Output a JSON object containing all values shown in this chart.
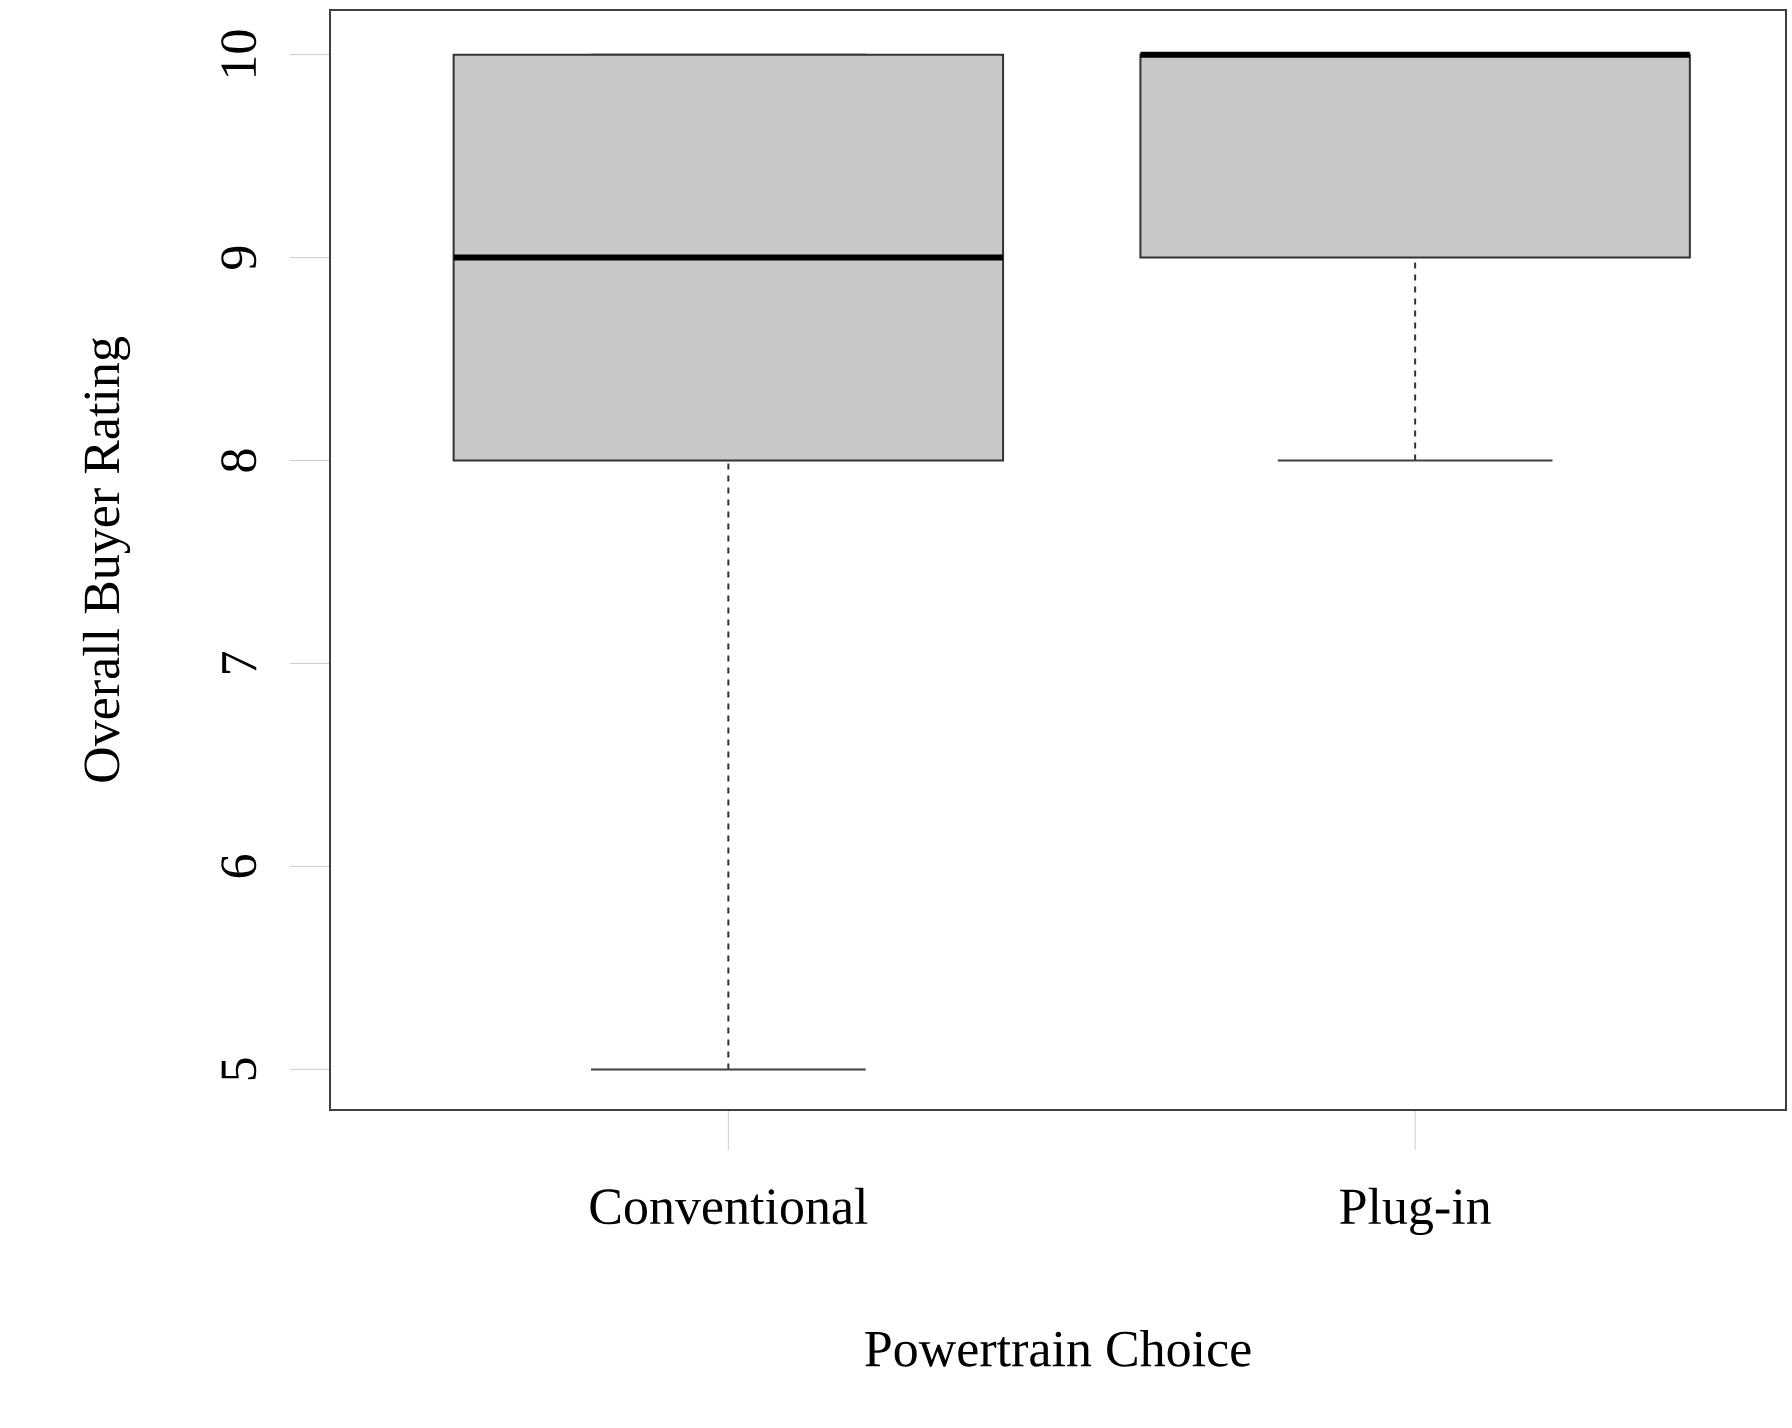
{
  "chart_data": {
    "type": "box",
    "xlabel": "Powertrain Choice",
    "ylabel": "Overall Buyer Rating",
    "categories": [
      "Conventional",
      "Plug-in"
    ],
    "boxes": [
      {
        "low": 5,
        "q1": 8,
        "median": 9,
        "q3": 10,
        "high": 10
      },
      {
        "low": 8,
        "q1": 9,
        "median": 10,
        "q3": 10,
        "high": 10
      }
    ],
    "color": "#c8c8c8",
    "ylim": [
      4.8,
      10.22
    ],
    "yticks": [
      5,
      6,
      7,
      8,
      9,
      10
    ]
  }
}
